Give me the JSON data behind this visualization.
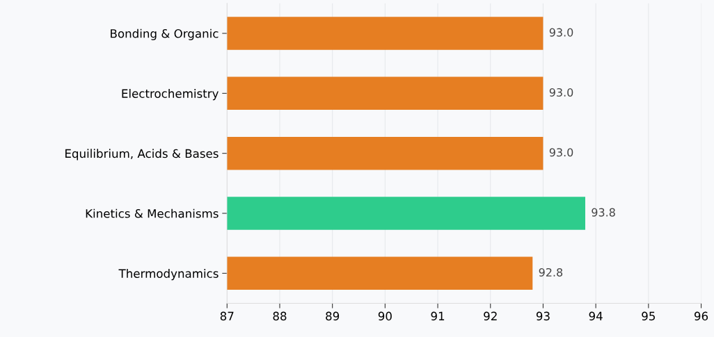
{
  "chart_data": {
    "type": "bar",
    "orientation": "horizontal",
    "categories": [
      "Bonding & Organic",
      "Electrochemistry",
      "Equilibrium, Acids & Bases",
      "Kinetics & Mechanisms",
      "Thermodynamics"
    ],
    "values": [
      93.0,
      93.0,
      93.0,
      93.8,
      92.8
    ],
    "colors": [
      "#e67e22",
      "#e67e22",
      "#e67e22",
      "#2ecc8c",
      "#e67e22"
    ],
    "value_labels": [
      "93.0",
      "93.0",
      "93.0",
      "93.8",
      "92.8"
    ],
    "xlim": [
      87,
      96
    ],
    "xticks": [
      87,
      88,
      89,
      90,
      91,
      92,
      93,
      94,
      95,
      96
    ],
    "grid": "x",
    "legend": false
  }
}
